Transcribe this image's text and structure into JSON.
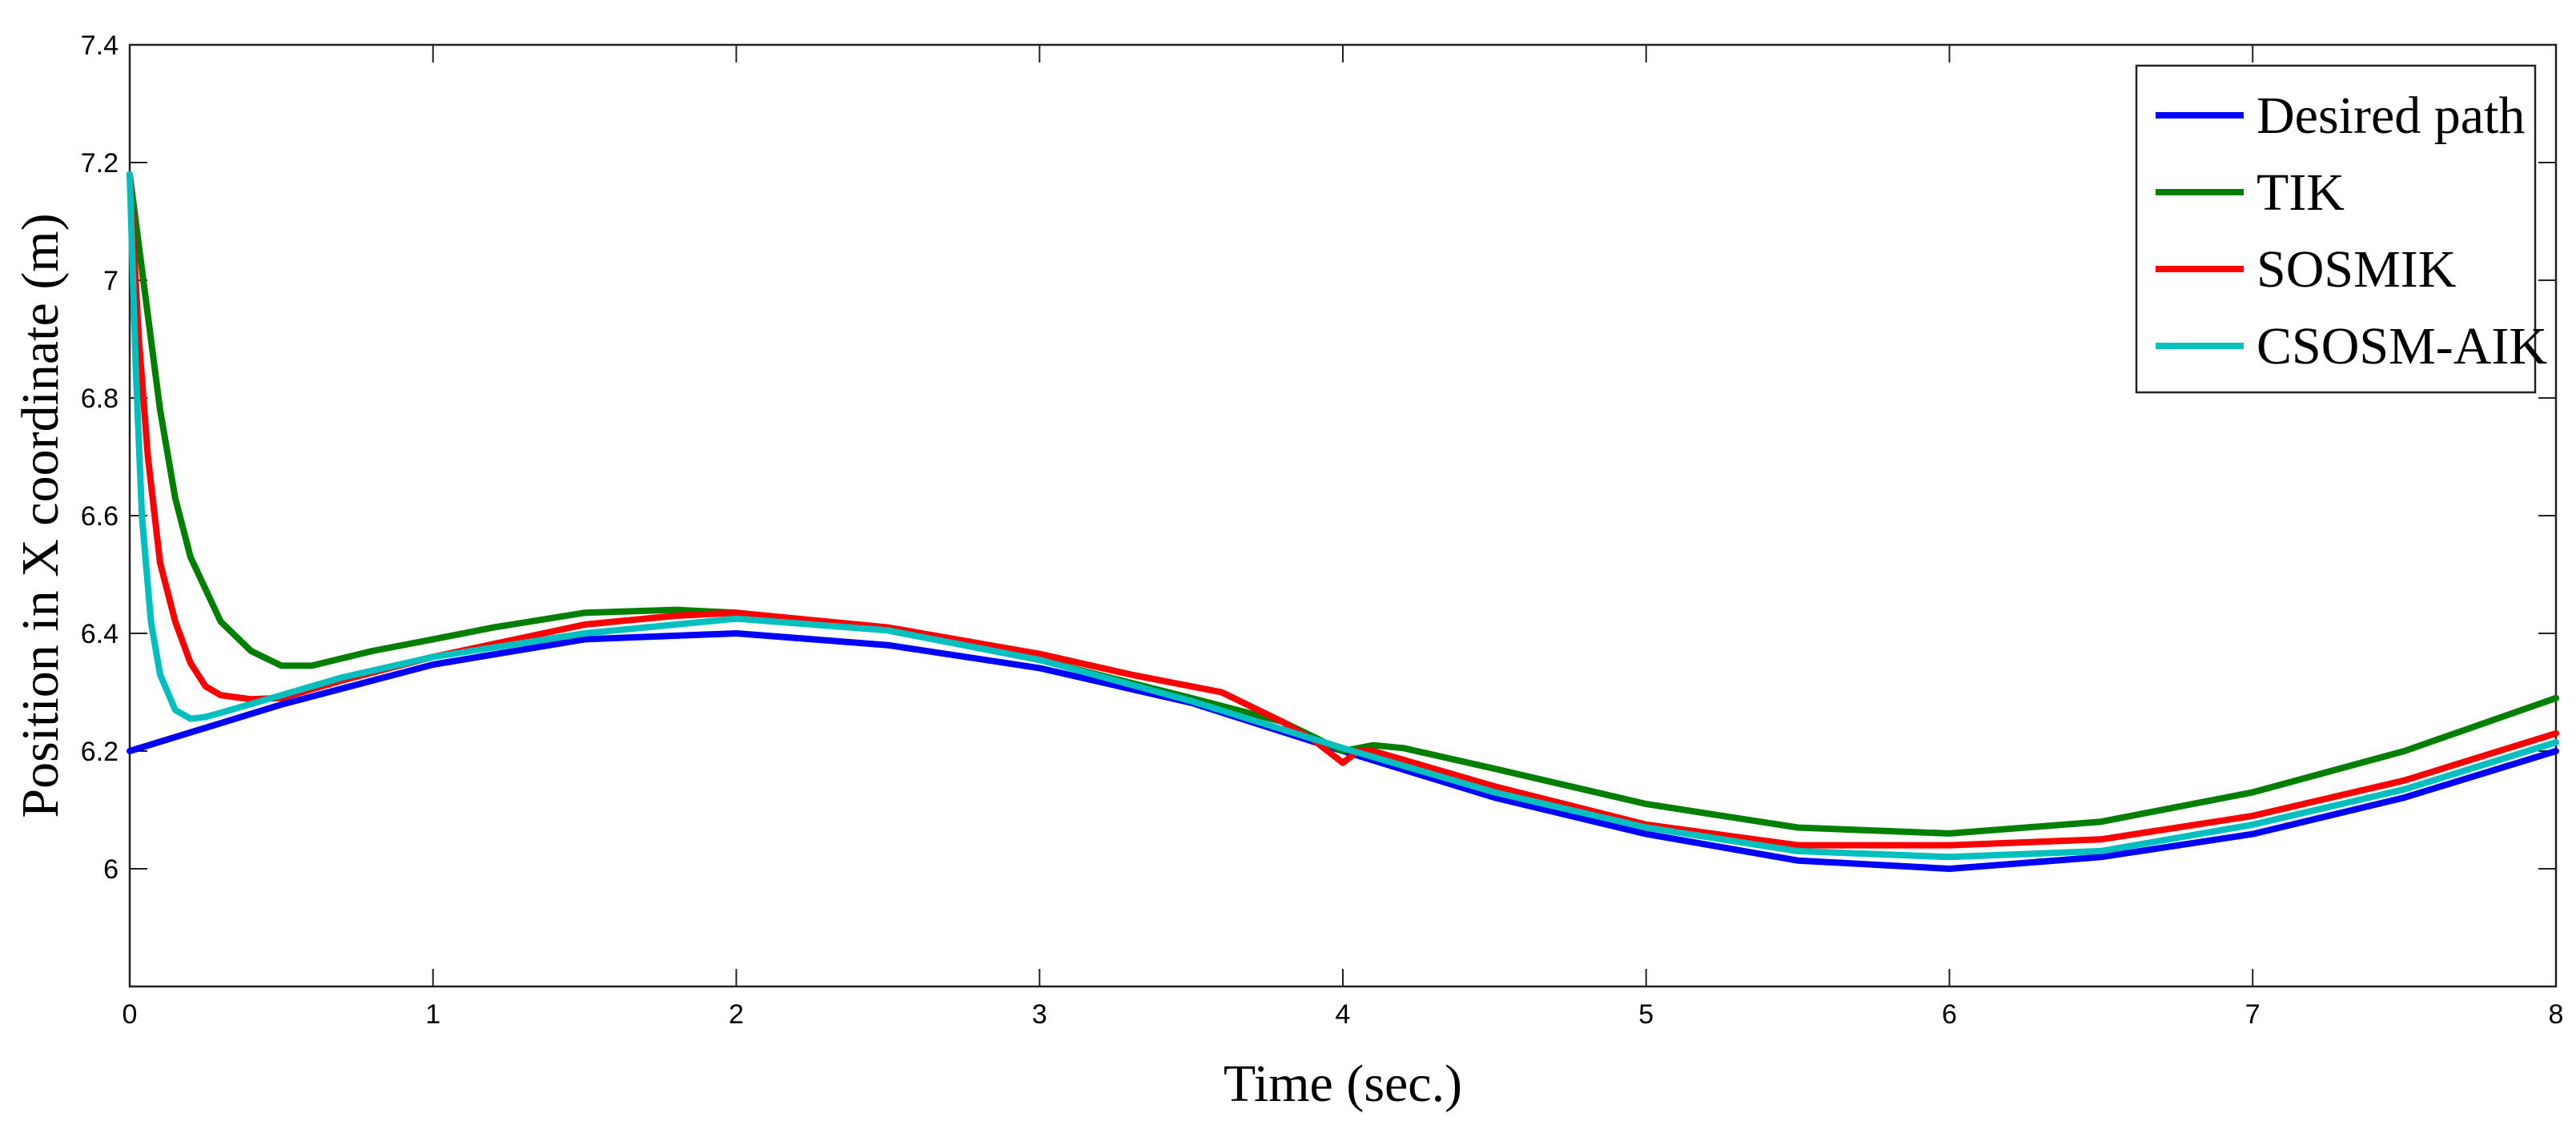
{
  "chart_data": {
    "type": "line",
    "title": "",
    "xlabel": "Time (sec.)",
    "ylabel": "Position in X coordinate (m)",
    "xlim": [
      0,
      8
    ],
    "ylim": [
      5.8,
      7.4
    ],
    "xticks": [
      "0",
      "1",
      "2",
      "3",
      "4",
      "5",
      "6",
      "7",
      "8"
    ],
    "yticks": [
      "6",
      "6.2",
      "6.4",
      "6.6",
      "6.8",
      "7",
      "7.2",
      "7.4"
    ],
    "grid": false,
    "legend_position": "top-right",
    "series": [
      {
        "name": "Desired path",
        "color": "#0000ff",
        "x": [
          0,
          0.5,
          1.0,
          1.5,
          2.0,
          2.5,
          3.0,
          3.5,
          4.0,
          4.5,
          5.0,
          5.5,
          6.0,
          6.5,
          7.0,
          7.5,
          8.0
        ],
        "y": [
          6.2,
          6.279,
          6.347,
          6.39,
          6.4,
          6.38,
          6.341,
          6.282,
          6.2,
          6.121,
          6.059,
          6.014,
          6.0,
          6.02,
          6.059,
          6.121,
          6.2
        ]
      },
      {
        "name": "TIK",
        "color": "#007f00",
        "x": [
          0,
          0.05,
          0.1,
          0.15,
          0.2,
          0.3,
          0.4,
          0.5,
          0.6,
          0.8,
          1.0,
          1.2,
          1.5,
          1.8,
          2.0,
          2.5,
          3.0,
          3.5,
          3.8,
          4.0,
          4.1,
          4.2,
          4.5,
          5.0,
          5.5,
          6.0,
          6.5,
          7.0,
          7.5,
          8.0
        ],
        "y": [
          7.18,
          6.98,
          6.78,
          6.63,
          6.53,
          6.42,
          6.37,
          6.345,
          6.345,
          6.37,
          6.39,
          6.41,
          6.435,
          6.44,
          6.435,
          6.405,
          6.355,
          6.29,
          6.25,
          6.2,
          6.21,
          6.205,
          6.17,
          6.11,
          6.07,
          6.06,
          6.08,
          6.13,
          6.2,
          6.29
        ]
      },
      {
        "name": "SOSMIK",
        "color": "#ff0000",
        "x": [
          0,
          0.03,
          0.06,
          0.1,
          0.15,
          0.2,
          0.25,
          0.3,
          0.4,
          0.5,
          0.7,
          1.0,
          1.5,
          1.8,
          2.0,
          2.5,
          3.0,
          3.3,
          3.6,
          3.8,
          3.9,
          3.95,
          4.0,
          4.05,
          4.1,
          4.5,
          5.0,
          5.5,
          6.0,
          6.5,
          7.0,
          7.5,
          8.0
        ],
        "y": [
          7.18,
          6.9,
          6.7,
          6.52,
          6.42,
          6.35,
          6.31,
          6.295,
          6.288,
          6.29,
          6.32,
          6.36,
          6.415,
          6.43,
          6.435,
          6.41,
          6.365,
          6.33,
          6.3,
          6.25,
          6.22,
          6.2,
          6.18,
          6.2,
          6.2,
          6.14,
          6.075,
          6.04,
          6.04,
          6.05,
          6.09,
          6.15,
          6.23
        ]
      },
      {
        "name": "CSOSM-AIK",
        "color": "#00bfbf",
        "x": [
          0,
          0.02,
          0.04,
          0.07,
          0.1,
          0.15,
          0.2,
          0.25,
          0.3,
          0.4,
          0.5,
          0.7,
          1.0,
          1.5,
          2.0,
          2.5,
          3.0,
          3.5,
          4.0,
          4.5,
          5.0,
          5.5,
          6.0,
          6.5,
          7.0,
          7.5,
          8.0
        ],
        "y": [
          7.18,
          6.85,
          6.6,
          6.42,
          6.33,
          6.27,
          6.255,
          6.258,
          6.265,
          6.28,
          6.295,
          6.325,
          6.36,
          6.4,
          6.425,
          6.405,
          6.355,
          6.285,
          6.205,
          6.13,
          6.07,
          6.03,
          6.02,
          6.03,
          6.075,
          6.135,
          6.215
        ]
      }
    ]
  }
}
